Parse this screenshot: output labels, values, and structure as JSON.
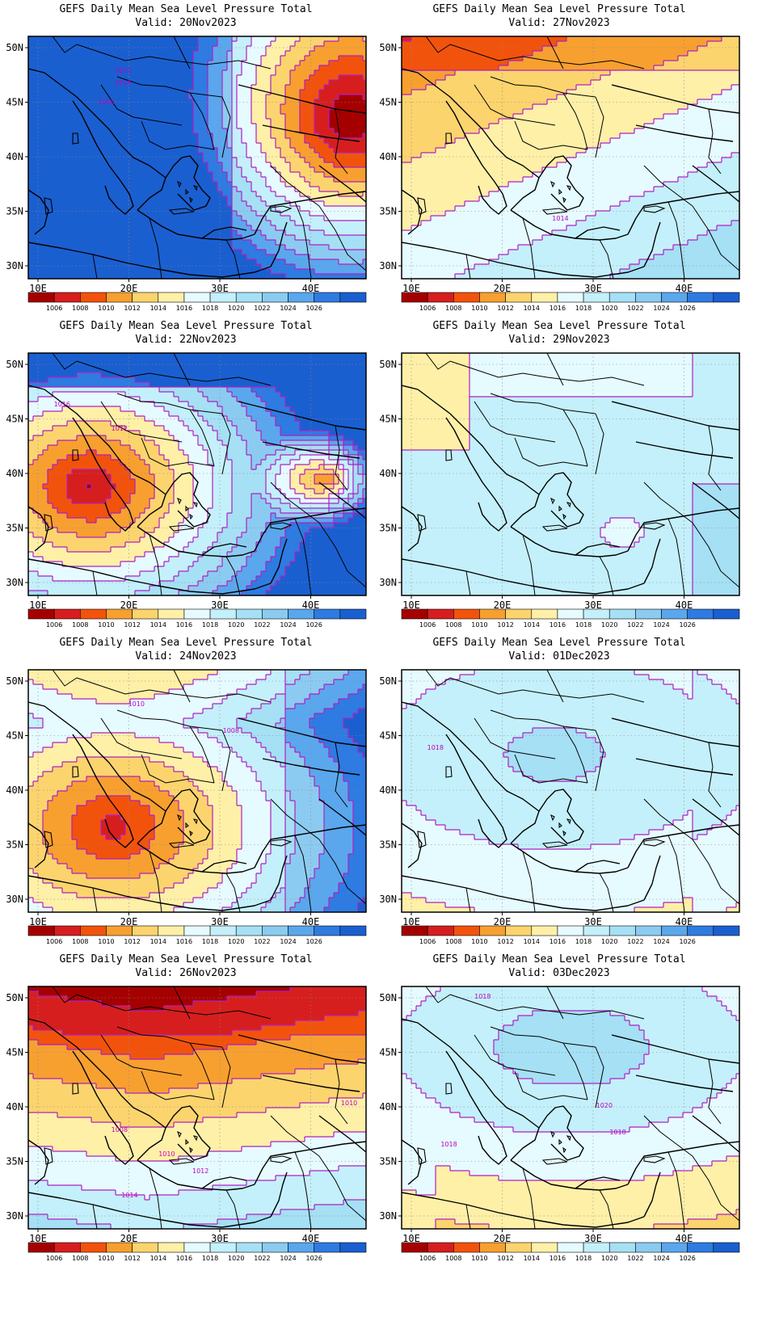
{
  "panels": [
    {
      "col": 0,
      "row": 0,
      "title": "GEFS Daily Mean Sea Level Pressure Total",
      "valid": "Valid: 20Nov2023",
      "pattern": "lowE",
      "labels": [
        "1012",
        "1014",
        "1016"
      ]
    },
    {
      "col": 0,
      "row": 1,
      "title": "GEFS Daily Mean Sea Level Pressure Total",
      "valid": "Valid: 22Nov2023",
      "pattern": "lowW",
      "labels": [
        "1016",
        "1012"
      ]
    },
    {
      "col": 0,
      "row": 2,
      "title": "GEFS Daily Mean Sea Level Pressure Total",
      "valid": "Valid: 24Nov2023",
      "pattern": "low2",
      "labels": [
        "1010",
        "1008"
      ]
    },
    {
      "col": 0,
      "row": 3,
      "title": "GEFS Daily Mean Sea Level Pressure Total",
      "valid": "Valid: 26Nov2023",
      "pattern": "lowN",
      "labels": [
        "1008",
        "1010",
        "1012",
        "1014",
        "1010"
      ]
    },
    {
      "col": 1,
      "row": 0,
      "title": "GEFS Daily Mean Sea Level Pressure Total",
      "valid": "Valid: 27Nov2023",
      "pattern": "mid",
      "labels": [
        "1014"
      ]
    },
    {
      "col": 1,
      "row": 1,
      "title": "GEFS Daily Mean Sea Level Pressure Total",
      "valid": "Valid: 29Nov2023",
      "pattern": "flat",
      "labels": []
    },
    {
      "col": 1,
      "row": 2,
      "title": "GEFS Daily Mean Sea Level Pressure Total",
      "valid": "Valid: 01Dec2023",
      "pattern": "high",
      "labels": [
        "1018"
      ]
    },
    {
      "col": 1,
      "row": 3,
      "title": "GEFS Daily Mean Sea Level Pressure Total",
      "valid": "Valid: 03Dec2023",
      "pattern": "high2",
      "labels": [
        "1018",
        "1020",
        "1018",
        "1018"
      ]
    }
  ],
  "axes": {
    "lat_ticks": [
      "50N",
      "45N",
      "40N",
      "35N",
      "30N"
    ],
    "lon_ticks": [
      "10E",
      "20E",
      "30E",
      "40E"
    ]
  },
  "colorbar": {
    "labels": [
      "1006",
      "1008",
      "1010",
      "1012",
      "1014",
      "1016",
      "1018",
      "1020",
      "1022",
      "1024",
      "1026"
    ],
    "colors": [
      "#a50000",
      "#d71e1e",
      "#f2530c",
      "#f7a030",
      "#fcd46e",
      "#fff0a8",
      "#e6fbff",
      "#c4f0fb",
      "#a5e0f5",
      "#8ccbf1",
      "#5aa7ed",
      "#2e7be1",
      "#1a5fd0"
    ]
  },
  "contour_color": "#b020c0"
}
